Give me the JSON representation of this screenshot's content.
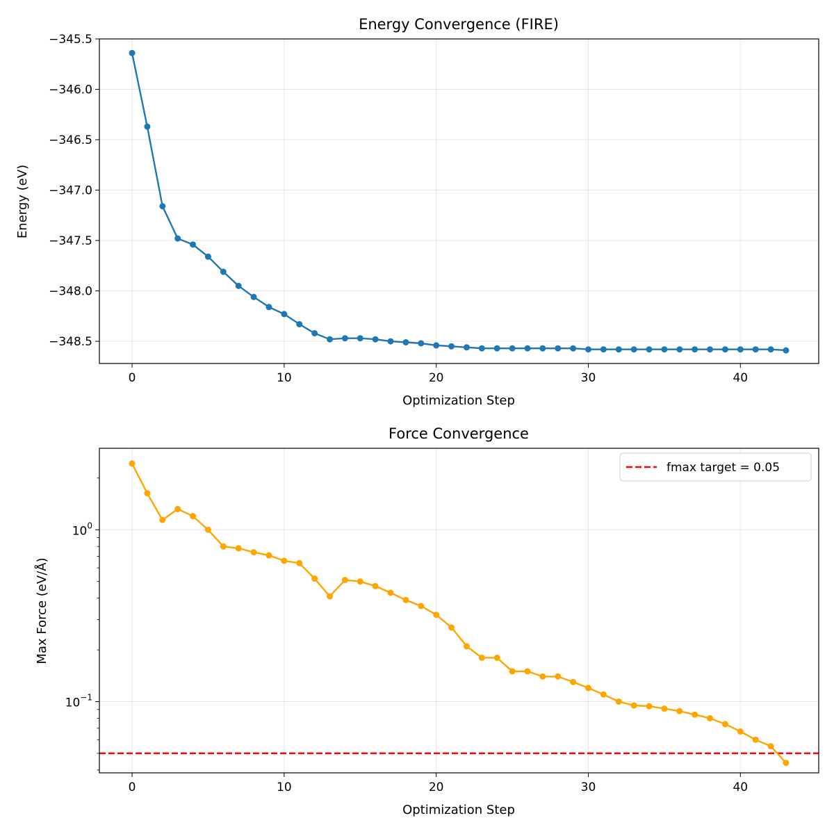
{
  "chart_data": [
    {
      "type": "line",
      "title": "Energy Convergence (FIRE)",
      "xlabel": "Optimization Step",
      "ylabel": "Energy (eV)",
      "xlim": [
        -2.15,
        45.15
      ],
      "ylim": [
        -348.72,
        -345.5
      ],
      "xticks": [
        0,
        10,
        20,
        30,
        40
      ],
      "xtick_labels": [
        "0",
        "10",
        "20",
        "30",
        "40"
      ],
      "yticks": [
        -345.5,
        -346.0,
        -346.5,
        -347.0,
        -347.5,
        -348.0,
        -348.5
      ],
      "ytick_labels": [
        "−345.5",
        "−346.0",
        "−346.5",
        "−347.0",
        "−347.5",
        "−348.0",
        "−348.5"
      ],
      "grid": true,
      "series": [
        {
          "color": "#1f77b4",
          "marker": "circle",
          "x": [
            0,
            1,
            2,
            3,
            4,
            5,
            6,
            7,
            8,
            9,
            10,
            11,
            12,
            13,
            14,
            15,
            16,
            17,
            18,
            19,
            20,
            21,
            22,
            23,
            24,
            25,
            26,
            27,
            28,
            29,
            30,
            31,
            32,
            33,
            34,
            35,
            36,
            37,
            38,
            39,
            40,
            41,
            42,
            43
          ],
          "y": [
            -345.64,
            -346.37,
            -347.16,
            -347.48,
            -347.54,
            -347.66,
            -347.81,
            -347.95,
            -348.06,
            -348.16,
            -348.23,
            -348.33,
            -348.42,
            -348.48,
            -348.47,
            -348.47,
            -348.48,
            -348.5,
            -348.51,
            -348.52,
            -348.54,
            -348.55,
            -348.56,
            -348.57,
            -348.57,
            -348.57,
            -348.57,
            -348.57,
            -348.57,
            -348.57,
            -348.58,
            -348.58,
            -348.58,
            -348.58,
            -348.58,
            -348.58,
            -348.58,
            -348.58,
            -348.58,
            -348.58,
            -348.58,
            -348.58,
            -348.58,
            -348.59
          ]
        }
      ]
    },
    {
      "type": "line",
      "title": "Force Convergence",
      "xlabel": "Optimization Step",
      "ylabel": "Max Force (eV/Å)",
      "yscale": "log",
      "xlim": [
        -2.15,
        45.15
      ],
      "ylim": [
        0.0385,
        2.98
      ],
      "xticks": [
        0,
        10,
        20,
        30,
        40
      ],
      "xtick_labels": [
        "0",
        "10",
        "20",
        "30",
        "40"
      ],
      "yticks_major": [
        {
          "value": 1,
          "base": "10",
          "exp": "0"
        },
        {
          "value": 0.1,
          "base": "10",
          "exp": "−1"
        }
      ],
      "grid": true,
      "legend": {
        "position": "top-right"
      },
      "series": [
        {
          "color": "#ffa500",
          "marker": "circle",
          "x": [
            0,
            1,
            2,
            3,
            4,
            5,
            6,
            7,
            8,
            9,
            10,
            11,
            12,
            13,
            14,
            15,
            16,
            17,
            18,
            19,
            20,
            21,
            22,
            23,
            24,
            25,
            26,
            27,
            28,
            29,
            30,
            31,
            32,
            33,
            34,
            35,
            36,
            37,
            38,
            39,
            40,
            41,
            42,
            43
          ],
          "y": [
            2.43,
            1.63,
            1.14,
            1.32,
            1.2,
            1.0,
            0.8,
            0.78,
            0.74,
            0.71,
            0.66,
            0.64,
            0.52,
            0.41,
            0.51,
            0.5,
            0.47,
            0.43,
            0.39,
            0.36,
            0.32,
            0.27,
            0.21,
            0.18,
            0.18,
            0.15,
            0.15,
            0.14,
            0.14,
            0.13,
            0.12,
            0.11,
            0.1,
            0.095,
            0.094,
            0.091,
            0.088,
            0.084,
            0.08,
            0.074,
            0.067,
            0.06,
            0.055,
            0.044
          ]
        }
      ],
      "reference_line": {
        "value": 0.05,
        "color": "#ff0000",
        "style": "dashed",
        "label": "fmax target = 0.05"
      }
    }
  ]
}
